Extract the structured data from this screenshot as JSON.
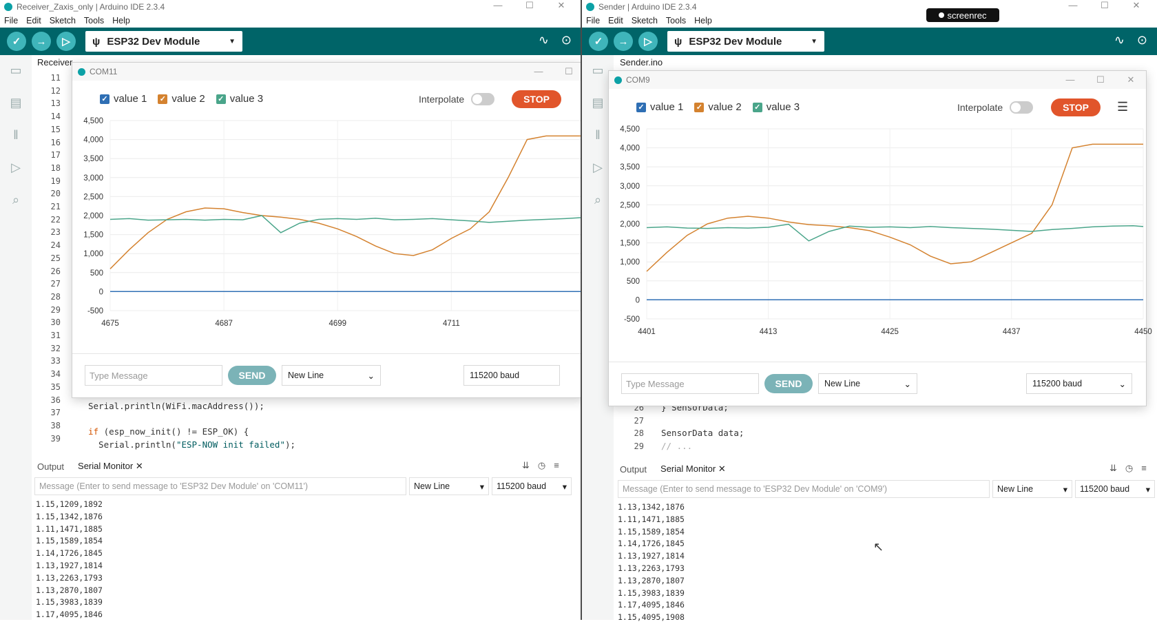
{
  "left": {
    "window_title": "Receiver_Zaxis_only | Arduino IDE 2.3.4",
    "menu": [
      "File",
      "Edit",
      "Sketch",
      "Tools",
      "Help"
    ],
    "board": "ESP32 Dev Module",
    "file_tab": "Receiver",
    "line_numbers": [
      "11",
      "12",
      "13",
      "14",
      "15",
      "16",
      "17",
      "18",
      "19",
      "20",
      "21",
      "22",
      "23",
      "24",
      "25",
      "26",
      "27",
      "28",
      "29",
      "30",
      "31",
      "32",
      "33",
      "34",
      "35",
      "36",
      "37",
      "38",
      "39"
    ],
    "code": {
      "l36": "Serial.println(WiFi.macAddress());",
      "l37": "",
      "l38_kw": "if",
      "l38_rest": " (esp_now_init() != ESP_OK) {",
      "l39_a": "  Serial.println(",
      "l39_str": "\"ESP-NOW init failed\"",
      "l39_b": ");"
    },
    "panel_tabs": {
      "output": "Output",
      "serial": "Serial Monitor"
    },
    "message_placeholder": "Message (Enter to send message to 'ESP32 Dev Module' on 'COM11')",
    "line_ending": "New Line",
    "baud": "115200 baud",
    "serial_lines": [
      "1.15,1209,1892",
      "1.15,1342,1876",
      "1.11,1471,1885",
      "1.15,1589,1854",
      "1.14,1726,1845",
      "1.13,1927,1814",
      "1.13,2263,1793",
      "1.13,2870,1807",
      "1.15,3983,1839",
      "1.17,4095,1846"
    ],
    "plotter": {
      "title": "COM11",
      "legend": [
        "value 1",
        "value 2",
        "value 3"
      ],
      "interpolate": "Interpolate",
      "stop": "STOP",
      "type_placeholder": "Type Message",
      "send": "SEND",
      "line_ending": "New Line",
      "baud": "115200 baud"
    }
  },
  "right": {
    "window_title": "Sender | Arduino IDE 2.3.4",
    "menu": [
      "File",
      "Edit",
      "Sketch",
      "Tools",
      "Help"
    ],
    "board": "ESP32 Dev Module",
    "file_tab": "Sender.ino",
    "line_numbers": [
      "26",
      "27",
      "28",
      "29"
    ],
    "code": {
      "l26": "} SensorData;",
      "l27": "",
      "l28": "SensorData data;",
      "l29": "// ..."
    },
    "panel_tabs": {
      "output": "Output",
      "serial": "Serial Monitor"
    },
    "message_placeholder": "Message (Enter to send message to 'ESP32 Dev Module' on 'COM9')",
    "line_ending": "New Line",
    "baud": "115200 baud",
    "serial_lines": [
      "1.13,1342,1876",
      "1.11,1471,1885",
      "1.15,1589,1854",
      "1.14,1726,1845",
      "1.13,1927,1814",
      "1.13,2263,1793",
      "1.13,2870,1807",
      "1.15,3983,1839",
      "1.17,4095,1846",
      "1.15,4095,1908"
    ],
    "plotter": {
      "title": "COM9",
      "legend": [
        "value 1",
        "value 2",
        "value 3"
      ],
      "interpolate": "Interpolate",
      "stop": "STOP",
      "type_placeholder": "Type Message",
      "send": "SEND",
      "line_ending": "New Line",
      "baud": "115200 baud"
    }
  },
  "screenrec_label": "screenrec",
  "colors": {
    "value1": "#2f6fb4",
    "value2": "#d4822f",
    "value3": "#4aa58a",
    "toolbar": "#006468",
    "stop": "#e1552b"
  },
  "chart_data": [
    {
      "type": "line",
      "x": [
        4675,
        4677,
        4679,
        4681,
        4683,
        4685,
        4687,
        4689,
        4691,
        4693,
        4695,
        4697,
        4699,
        4701,
        4703,
        4705,
        4707,
        4709,
        4711,
        4713,
        4715,
        4717,
        4719,
        4721,
        4723,
        4725
      ],
      "x_ticks": [
        "4675",
        "4687",
        "4699",
        "4711"
      ],
      "y_ticks": [
        "4,500",
        "4,000",
        "3,500",
        "3,000",
        "2,500",
        "2,000",
        "1,500",
        "1,000",
        "500",
        "0",
        "-500"
      ],
      "ylim": [
        -500,
        4500
      ],
      "legend": "top-left",
      "series": [
        {
          "name": "value 1",
          "values": [
            1,
            1,
            1,
            1,
            1,
            1,
            1,
            1,
            1,
            1,
            1,
            1,
            1,
            1,
            1,
            1,
            1,
            1,
            1,
            1,
            1,
            1,
            1,
            1,
            1,
            1
          ]
        },
        {
          "name": "value 2",
          "values": [
            600,
            1100,
            1550,
            1900,
            2100,
            2200,
            2180,
            2080,
            2000,
            1960,
            1900,
            1800,
            1650,
            1450,
            1200,
            1000,
            950,
            1100,
            1400,
            1650,
            2100,
            3000,
            4000,
            4095,
            4095,
            4095
          ]
        },
        {
          "name": "value 3",
          "values": [
            1900,
            1920,
            1880,
            1890,
            1900,
            1880,
            1900,
            1890,
            2000,
            1550,
            1800,
            1900,
            1920,
            1900,
            1930,
            1890,
            1900,
            1920,
            1890,
            1860,
            1820,
            1850,
            1880,
            1900,
            1920,
            1950
          ]
        }
      ]
    },
    {
      "type": "line",
      "x": [
        4401,
        4403,
        4405,
        4407,
        4409,
        4411,
        4413,
        4415,
        4417,
        4419,
        4421,
        4423,
        4425,
        4427,
        4429,
        4431,
        4433,
        4435,
        4437,
        4439,
        4441,
        4443,
        4445,
        4447,
        4449,
        4450
      ],
      "x_ticks": [
        "4401",
        "4413",
        "4425",
        "4437",
        "4450"
      ],
      "y_ticks": [
        "4,500",
        "4,000",
        "3,500",
        "3,000",
        "2,500",
        "2,000",
        "1,500",
        "1,000",
        "500",
        "0",
        "-500"
      ],
      "ylim": [
        -500,
        4500
      ],
      "legend": "top-left",
      "series": [
        {
          "name": "value 1",
          "values": [
            1,
            1,
            1,
            1,
            1,
            1,
            1,
            1,
            1,
            1,
            1,
            1,
            1,
            1,
            1,
            1,
            1,
            1,
            1,
            1,
            1,
            1,
            1,
            1,
            1,
            1
          ]
        },
        {
          "name": "value 2",
          "values": [
            750,
            1250,
            1700,
            2000,
            2150,
            2200,
            2150,
            2050,
            1980,
            1950,
            1900,
            1820,
            1650,
            1450,
            1150,
            950,
            1000,
            1250,
            1500,
            1750,
            2500,
            4000,
            4095,
            4095,
            4095,
            4095
          ]
        },
        {
          "name": "value 3",
          "values": [
            1900,
            1920,
            1890,
            1880,
            1900,
            1890,
            1910,
            1990,
            1550,
            1800,
            1940,
            1910,
            1920,
            1900,
            1930,
            1900,
            1880,
            1860,
            1830,
            1800,
            1850,
            1880,
            1920,
            1940,
            1950,
            1930
          ]
        }
      ]
    }
  ]
}
